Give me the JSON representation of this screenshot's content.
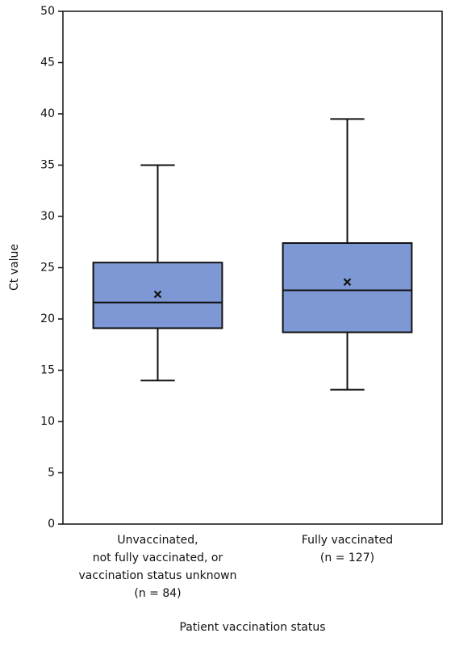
{
  "chart_data": {
    "type": "box",
    "categories": [
      [
        "Unvaccinated,",
        "not fully vaccinated, or",
        "vaccination status unknown",
        "(n = 84)"
      ],
      [
        "Fully vaccinated",
        "(n = 127)"
      ]
    ],
    "boxes": [
      {
        "min": 14.0,
        "q1": 19.1,
        "median": 21.6,
        "q3": 25.5,
        "max": 35.0,
        "mean": 22.4
      },
      {
        "min": 13.1,
        "q1": 18.7,
        "median": 22.8,
        "q3": 27.4,
        "max": 39.5,
        "mean": 23.6
      }
    ],
    "color": "#7d98d4",
    "ylabel": "Ct value",
    "xlabel": "Patient vaccination status",
    "ylim": [
      0,
      50
    ],
    "yticks": [
      0,
      5,
      10,
      15,
      20,
      25,
      30,
      35,
      40,
      45,
      50
    ],
    "grid": false
  }
}
